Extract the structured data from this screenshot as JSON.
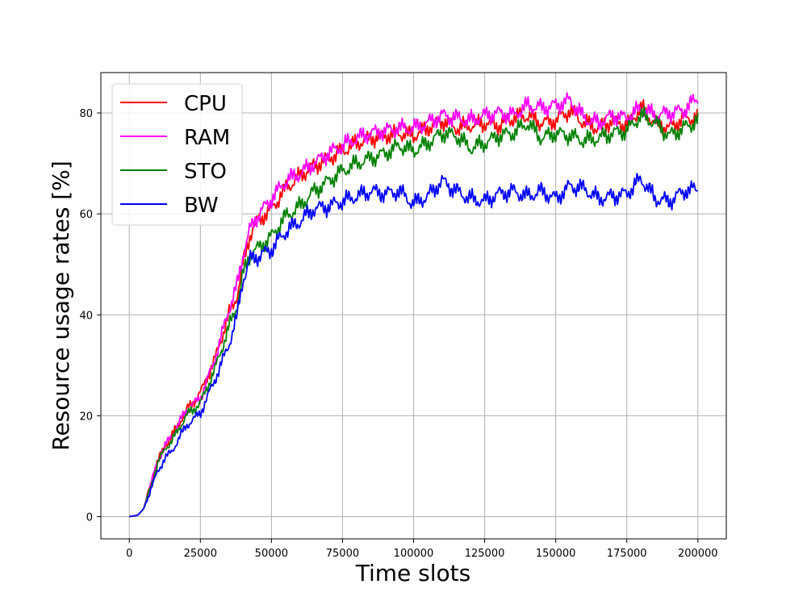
{
  "chart_data": {
    "type": "line",
    "title": "",
    "xlabel": "Time slots",
    "ylabel": "Resource usage rates [%]",
    "xlim": [
      -10000,
      210000
    ],
    "ylim": [
      -4.4,
      88
    ],
    "xticks": [
      0,
      25000,
      50000,
      75000,
      100000,
      125000,
      150000,
      175000,
      200000
    ],
    "yticks": [
      0,
      20,
      40,
      60,
      80
    ],
    "grid": true,
    "legend_position": "top-left",
    "series": [
      {
        "name": "CPU",
        "color": "#ff0000",
        "x": [
          0,
          3000,
          5000,
          7000,
          10000,
          12500,
          15000,
          20000,
          25000,
          30000,
          35000,
          38000,
          40000,
          42500,
          45000,
          50000,
          55000,
          60000,
          65000,
          70000,
          75000,
          80000,
          85000,
          90000,
          95000,
          100000,
          105000,
          110000,
          115000,
          120000,
          125000,
          130000,
          135000,
          140000,
          145000,
          150000,
          155000,
          160000,
          165000,
          170000,
          175000,
          180000,
          185000,
          190000,
          195000,
          200000
        ],
        "y": [
          0,
          0.3,
          1.5,
          5.5,
          11,
          14,
          16,
          21,
          24.5,
          31,
          40,
          44,
          50,
          56,
          58.5,
          61,
          65,
          67.5,
          69.5,
          71,
          72.5,
          74,
          75,
          75.5,
          76,
          75.5,
          77,
          78.5,
          77,
          77.5,
          78,
          77.5,
          79,
          79.5,
          78,
          78.5,
          80.5,
          78,
          77,
          78.5,
          77.5,
          81,
          78,
          77,
          79,
          79
        ]
      },
      {
        "name": "RAM",
        "color": "#ff00ff",
        "x": [
          0,
          3000,
          5000,
          7000,
          10000,
          12500,
          15000,
          20000,
          25000,
          30000,
          35000,
          38000,
          40000,
          42500,
          45000,
          50000,
          55000,
          60000,
          65000,
          70000,
          75000,
          80000,
          85000,
          90000,
          95000,
          100000,
          105000,
          110000,
          115000,
          120000,
          125000,
          130000,
          135000,
          140000,
          145000,
          150000,
          155000,
          160000,
          165000,
          170000,
          175000,
          180000,
          185000,
          190000,
          195000,
          200000
        ],
        "y": [
          0,
          0.3,
          1.5,
          5.5,
          11,
          14,
          16,
          21,
          23.5,
          31,
          41,
          46,
          52,
          57,
          59.5,
          63,
          66.5,
          68,
          70,
          72,
          73.5,
          75,
          76,
          76.5,
          77,
          77,
          78,
          79.5,
          79,
          78.5,
          79.5,
          80,
          79.5,
          81.5,
          81,
          81.5,
          82.5,
          79,
          78,
          79.5,
          79,
          81,
          79.5,
          80,
          80.5,
          83
        ]
      },
      {
        "name": "STO",
        "color": "#008000",
        "x": [
          0,
          3000,
          5000,
          7000,
          10000,
          12500,
          15000,
          20000,
          25000,
          30000,
          35000,
          38000,
          40000,
          42500,
          45000,
          50000,
          55000,
          60000,
          65000,
          70000,
          75000,
          80000,
          85000,
          90000,
          95000,
          100000,
          105000,
          110000,
          115000,
          120000,
          125000,
          130000,
          135000,
          140000,
          145000,
          150000,
          155000,
          160000,
          165000,
          170000,
          175000,
          180000,
          185000,
          190000,
          195000,
          200000
        ],
        "y": [
          0,
          0.3,
          1.5,
          5,
          10.5,
          13.5,
          15,
          20,
          22.5,
          29,
          37.5,
          42,
          48,
          52,
          53,
          55.5,
          59.5,
          61.5,
          64.5,
          66.5,
          68.5,
          70,
          71,
          72,
          73.5,
          72.5,
          74,
          76,
          75.5,
          73,
          74,
          75.5,
          76,
          78,
          75,
          76,
          75.5,
          74.5,
          75,
          76,
          76.5,
          79.5,
          78,
          75.5,
          77,
          78.5
        ]
      },
      {
        "name": "BW",
        "color": "#0000ff",
        "x": [
          0,
          3000,
          5000,
          7000,
          10000,
          12500,
          15000,
          20000,
          25000,
          30000,
          35000,
          38000,
          40000,
          42500,
          45000,
          50000,
          55000,
          60000,
          65000,
          70000,
          75000,
          80000,
          85000,
          90000,
          95000,
          100000,
          105000,
          110000,
          115000,
          120000,
          125000,
          130000,
          135000,
          140000,
          145000,
          150000,
          155000,
          160000,
          165000,
          170000,
          175000,
          180000,
          185000,
          190000,
          195000,
          200000
        ],
        "y": [
          0,
          0.3,
          1.5,
          4.5,
          9,
          11.5,
          13,
          18,
          20.5,
          27,
          34,
          40,
          47,
          51,
          51.5,
          53,
          56.5,
          58.5,
          61,
          61.5,
          62.5,
          63.5,
          64.5,
          64,
          64.5,
          62,
          63.5,
          66.5,
          64.5,
          63,
          62.5,
          64,
          64.5,
          63.5,
          64.5,
          63,
          65.5,
          65,
          63,
          63.5,
          64,
          67,
          63,
          62.5,
          64.5,
          65
        ]
      }
    ]
  }
}
